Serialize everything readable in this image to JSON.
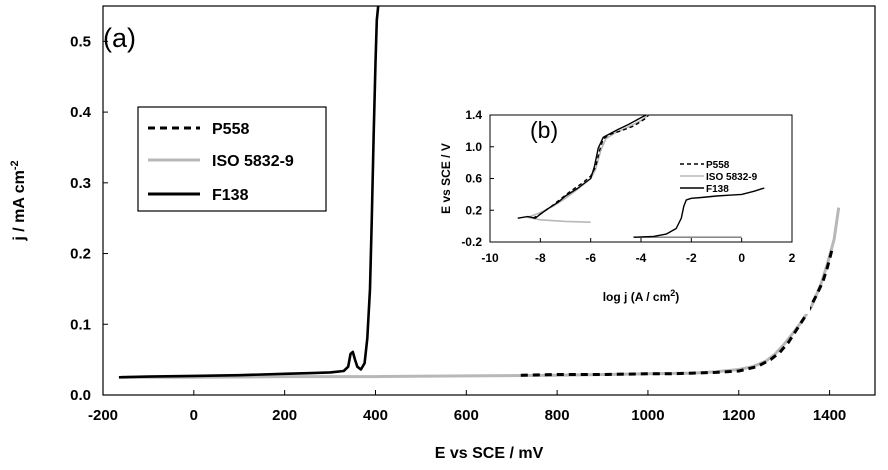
{
  "chart_data": [
    {
      "panel": "(a)",
      "type": "line",
      "xlabel": "E  vs  SCE  /  mV",
      "ylabel": "j  /  mA cm",
      "ylabel_sup": "-2",
      "xlim": [
        -200,
        1500
      ],
      "ylim": [
        0,
        0.55
      ],
      "xticks": [
        -200,
        0,
        200,
        400,
        600,
        800,
        1000,
        1200,
        1400
      ],
      "yticks": [
        0.0,
        0.1,
        0.2,
        0.3,
        0.4,
        0.5
      ],
      "legend": {
        "placement": "upper-left"
      },
      "series": [
        {
          "name": "P558",
          "style": "dashed",
          "color": "#000000",
          "x": [
            720,
            800,
            900,
            1000,
            1050,
            1100,
            1150,
            1200,
            1240,
            1270,
            1290,
            1310,
            1330,
            1350,
            1370,
            1385,
            1395,
            1405
          ],
          "y": [
            0.028,
            0.029,
            0.029,
            0.03,
            0.03,
            0.031,
            0.032,
            0.034,
            0.04,
            0.05,
            0.06,
            0.075,
            0.095,
            0.115,
            0.14,
            0.16,
            0.18,
            0.205
          ]
        },
        {
          "name": "ISO 5832-9",
          "style": "solid",
          "color": "#b8b8b8",
          "x": [
            -160,
            0,
            200,
            400,
            600,
            800,
            1000,
            1100,
            1150,
            1200,
            1230,
            1260,
            1280,
            1300,
            1320,
            1340,
            1360,
            1380,
            1395,
            1410,
            1420
          ],
          "y": [
            0.025,
            0.025,
            0.026,
            0.026,
            0.027,
            0.028,
            0.03,
            0.031,
            0.033,
            0.036,
            0.04,
            0.048,
            0.058,
            0.072,
            0.088,
            0.105,
            0.125,
            0.155,
            0.185,
            0.22,
            0.265
          ]
        },
        {
          "name": "F138",
          "style": "solid",
          "color": "#000000",
          "x": [
            -165,
            -100,
            0,
            100,
            200,
            260,
            300,
            330,
            340,
            345,
            350,
            355,
            360,
            368,
            376,
            382,
            388,
            392,
            396,
            400,
            403,
            406
          ],
          "y": [
            0.025,
            0.026,
            0.027,
            0.028,
            0.03,
            0.031,
            0.032,
            0.034,
            0.04,
            0.058,
            0.061,
            0.05,
            0.04,
            0.036,
            0.045,
            0.08,
            0.15,
            0.25,
            0.37,
            0.47,
            0.53,
            0.56
          ]
        }
      ]
    },
    {
      "panel": "(b)",
      "type": "line",
      "inset": true,
      "xlabel": "log j (A / cm",
      "xlabel_sup": "2",
      "xlabel_end": ")",
      "ylabel": "E vs SCE / V",
      "xlim": [
        -10,
        2
      ],
      "ylim": [
        -0.2,
        1.4
      ],
      "xticks": [
        -10,
        -8,
        -6,
        -4,
        -2,
        0,
        2
      ],
      "yticks": [
        -0.2,
        0.2,
        0.6,
        1.0,
        1.4
      ],
      "legend": {
        "placement": "right"
      },
      "series": [
        {
          "name": "P558",
          "style": "dashed",
          "color": "#000000",
          "x": [
            -8.3,
            -8.0,
            -7.6,
            -7.2,
            -6.8,
            -6.3,
            -6.0,
            -5.8,
            -5.65,
            -5.5,
            -5.2,
            -4.8,
            -4.3,
            -3.8,
            -3.7
          ],
          "y": [
            0.1,
            0.15,
            0.24,
            0.34,
            0.44,
            0.55,
            0.63,
            0.75,
            0.95,
            1.1,
            1.16,
            1.2,
            1.26,
            1.36,
            1.4
          ]
        },
        {
          "name": "ISO 5832-9",
          "style": "solid",
          "color": "#b8b8b8",
          "x": [
            -6.0,
            -7.0,
            -8.0,
            -8.5,
            -8.0,
            -7.5,
            -7.0,
            -6.5,
            -6.0,
            -5.8,
            -5.6,
            -5.4,
            -5.0,
            -4.5,
            -4.0,
            -3.7
          ],
          "y": [
            0.05,
            0.06,
            0.08,
            0.11,
            0.17,
            0.25,
            0.35,
            0.47,
            0.6,
            0.72,
            0.95,
            1.1,
            1.18,
            1.25,
            1.33,
            1.4
          ]
        },
        {
          "name": "F138",
          "style": "solid",
          "color": "#000000",
          "x": [
            -8.9,
            -8.5,
            -8.2,
            -8.0,
            -7.7,
            -7.3,
            -7.0,
            -6.5,
            -6.0,
            -5.85,
            -5.7,
            -5.5,
            -5.2,
            -4.9,
            -4.5,
            -4.1,
            -3.8
          ],
          "y": [
            0.1,
            0.12,
            0.1,
            0.15,
            0.22,
            0.3,
            0.38,
            0.48,
            0.6,
            0.75,
            0.98,
            1.12,
            1.17,
            1.22,
            1.28,
            1.35,
            1.4
          ]
        },
        {
          "name": "F138",
          "style": "solid",
          "color": "#000000",
          "x": [
            -4.3,
            -3.5,
            -3.0,
            -2.6,
            -2.4,
            -2.3,
            -2.2,
            -2.0,
            -1.6,
            -1.0,
            -0.5,
            0.0,
            0.5,
            0.9
          ],
          "y": [
            -0.14,
            -0.13,
            -0.1,
            -0.03,
            0.1,
            0.25,
            0.33,
            0.35,
            0.36,
            0.38,
            0.39,
            0.4,
            0.44,
            0.48
          ]
        },
        {
          "name": "ISO 5832-9",
          "style": "solid",
          "color": "#777777",
          "x": [
            -4.3,
            -3.0,
            -2.0,
            -1.0,
            0.0
          ],
          "y": [
            -0.14,
            -0.14,
            -0.14,
            -0.14,
            -0.14
          ]
        }
      ]
    }
  ]
}
